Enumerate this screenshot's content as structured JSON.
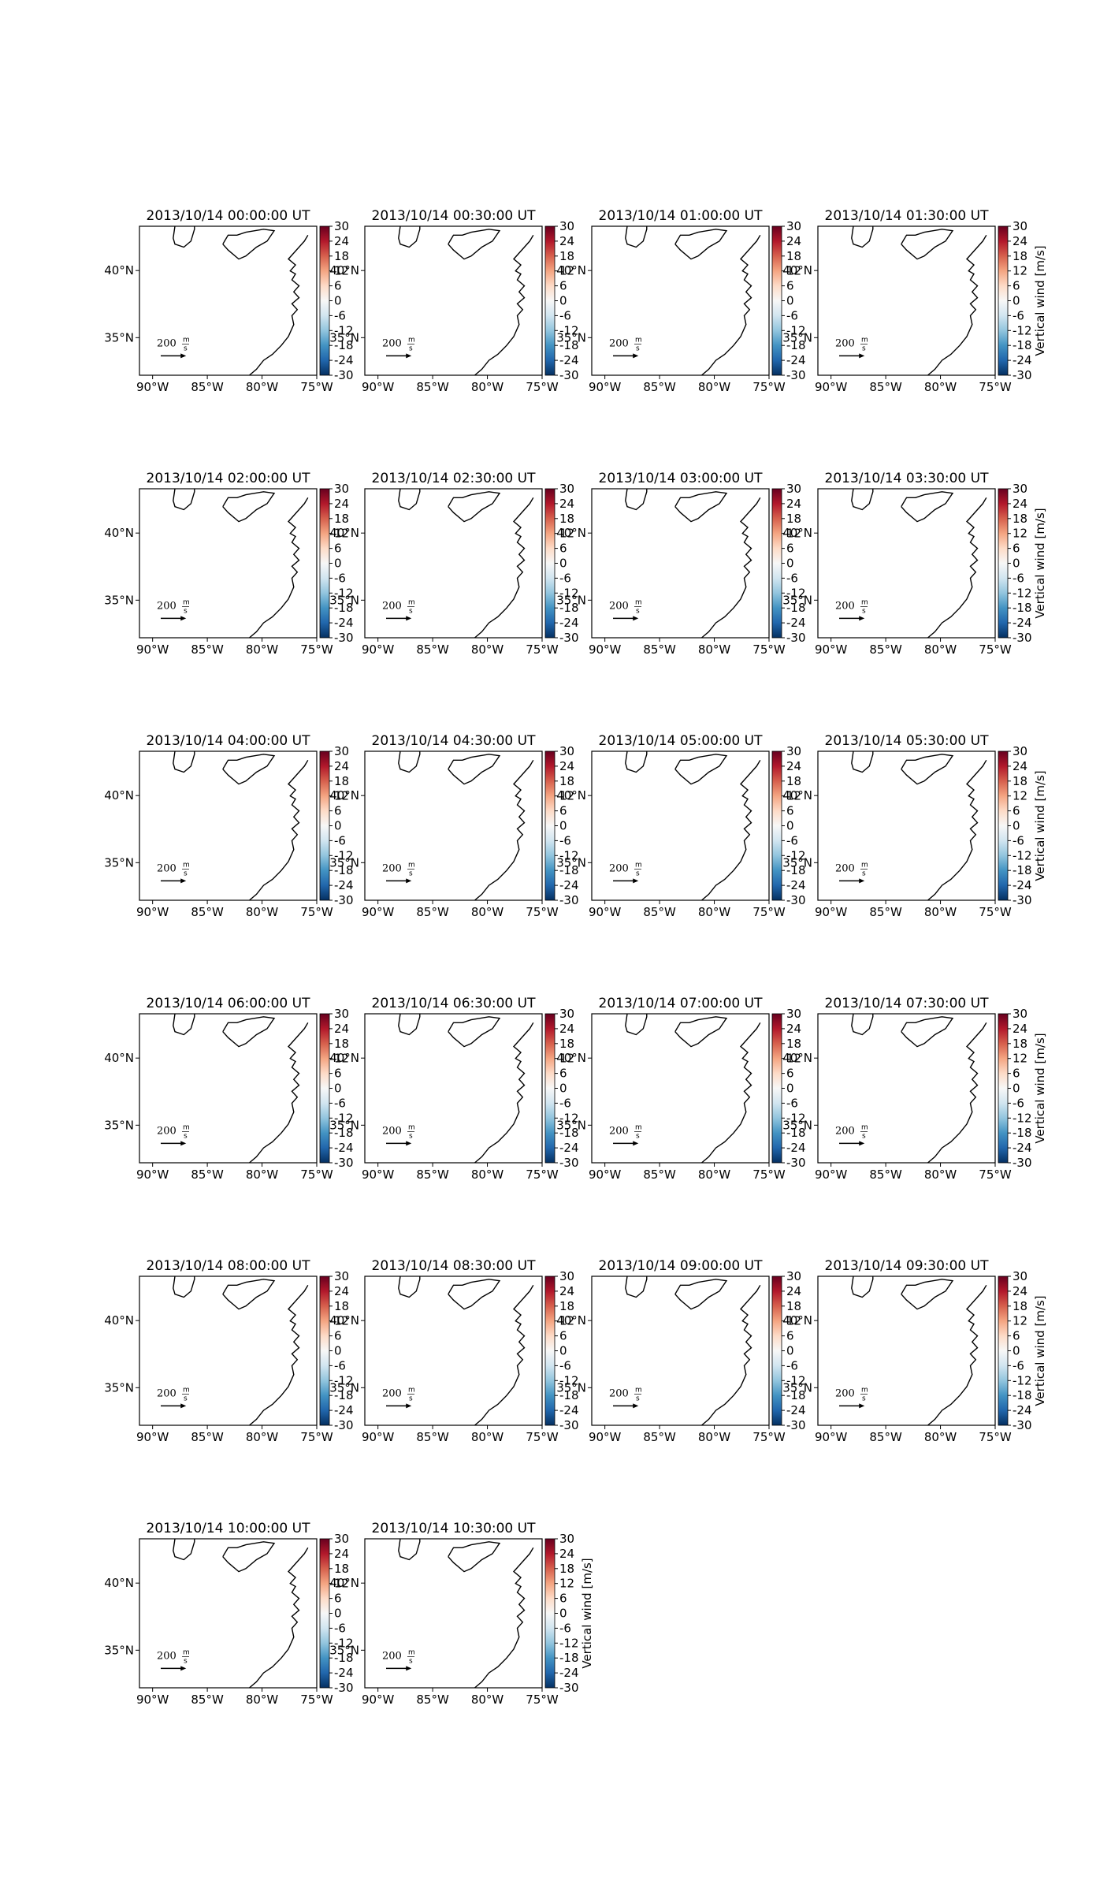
{
  "panels": [
    {
      "title": "2013/10/14 00:00:00 UT"
    },
    {
      "title": "2013/10/14 00:30:00 UT"
    },
    {
      "title": "2013/10/14 01:00:00 UT"
    },
    {
      "title": "2013/10/14 01:30:00 UT"
    },
    {
      "title": "2013/10/14 02:00:00 UT"
    },
    {
      "title": "2013/10/14 02:30:00 UT"
    },
    {
      "title": "2013/10/14 03:00:00 UT"
    },
    {
      "title": "2013/10/14 03:30:00 UT"
    },
    {
      "title": "2013/10/14 04:00:00 UT"
    },
    {
      "title": "2013/10/14 04:30:00 UT"
    },
    {
      "title": "2013/10/14 05:00:00 UT"
    },
    {
      "title": "2013/10/14 05:30:00 UT"
    },
    {
      "title": "2013/10/14 06:00:00 UT"
    },
    {
      "title": "2013/10/14 06:30:00 UT"
    },
    {
      "title": "2013/10/14 07:00:00 UT"
    },
    {
      "title": "2013/10/14 07:30:00 UT"
    },
    {
      "title": "2013/10/14 08:00:00 UT"
    },
    {
      "title": "2013/10/14 08:30:00 UT"
    },
    {
      "title": "2013/10/14 09:00:00 UT"
    },
    {
      "title": "2013/10/14 09:30:00 UT"
    },
    {
      "title": "2013/10/14 10:00:00 UT"
    },
    {
      "title": "2013/10/14 10:30:00 UT"
    }
  ],
  "xlim": [
    -91.2,
    -75
  ],
  "ylim": [
    32.2,
    43.3
  ],
  "xticks": [
    {
      "value": -90,
      "label": "90°W"
    },
    {
      "value": -85,
      "label": "85°W"
    },
    {
      "value": -80,
      "label": "80°W"
    },
    {
      "value": -75,
      "label": "75°W"
    }
  ],
  "yticks": [
    {
      "value": 35,
      "label": "35°N"
    },
    {
      "value": 40,
      "label": "40°N"
    }
  ],
  "quiver_key": {
    "value": 200,
    "unit_numerator": "m",
    "unit_denominator": "s"
  },
  "colorbar": {
    "label": "Vertical wind [m/s]",
    "lim": [
      -30,
      30
    ],
    "ticks": [
      30,
      24,
      18,
      12,
      6,
      0,
      -6,
      -12,
      -18,
      -24,
      -30
    ]
  }
}
